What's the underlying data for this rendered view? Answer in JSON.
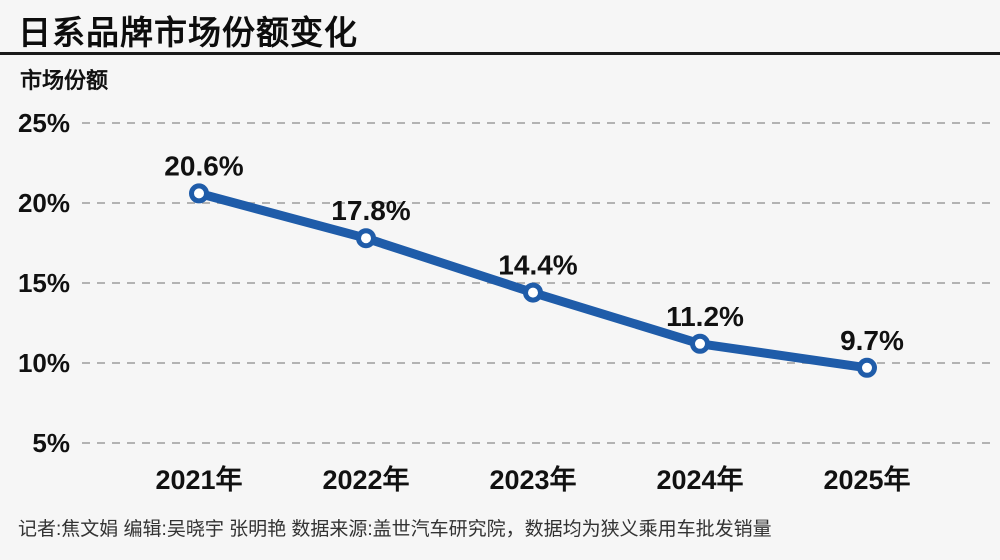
{
  "page": {
    "title": "日系品牌市场份额变化",
    "axis_title": "市场份额"
  },
  "footer": {
    "text": "记者:焦文娟  编辑:吴晓宇 张明艳  数据来源:盖世汽车研究院，数据均为狭义乘用车批发销量"
  },
  "chart_data": {
    "type": "line",
    "title": "日系品牌市场份额变化",
    "ylabel": "市场份额",
    "xlabel": "",
    "categories": [
      "2021年",
      "2022年",
      "2023年",
      "2024年",
      "2025年"
    ],
    "series": [
      {
        "name": "日系品牌市场份额",
        "values": [
          20.6,
          17.8,
          14.4,
          11.2,
          9.7
        ]
      }
    ],
    "point_labels": [
      "20.6%",
      "17.8%",
      "14.4%",
      "11.2%",
      "9.7%"
    ],
    "y_ticks": [
      25,
      20,
      15,
      10,
      5
    ],
    "y_tick_labels": [
      "25%",
      "20%",
      "15%",
      "10%",
      "5%"
    ],
    "ylim": [
      5,
      25
    ],
    "grid": "horizontal-dashed",
    "legend": "none",
    "colors": {
      "line": "#1f5ca9",
      "marker_fill": "#ffffff",
      "marker_stroke": "#1f5ca9",
      "gridline": "#b3b3b3",
      "text": "#111111",
      "footer_text": "#333333",
      "background": "#f6f6f6"
    }
  }
}
